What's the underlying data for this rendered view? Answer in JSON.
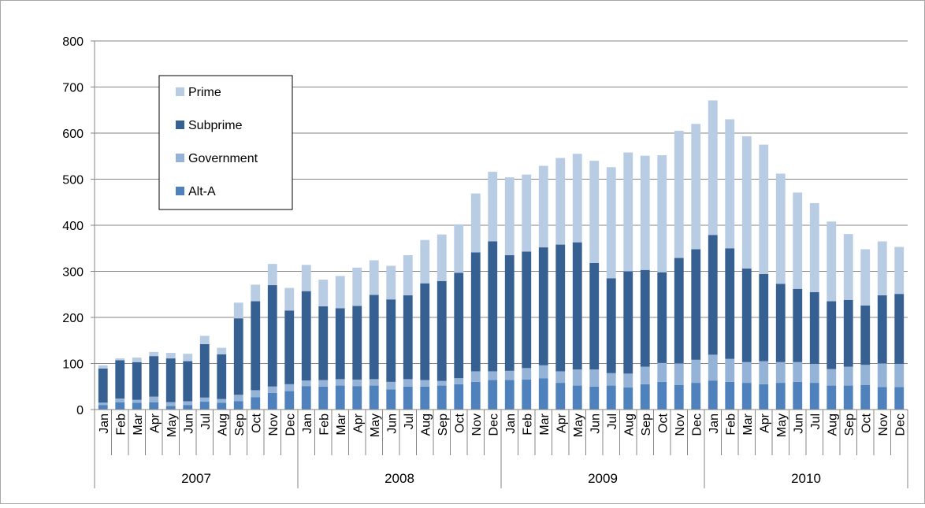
{
  "chart_data": {
    "type": "bar",
    "stacked": true,
    "title": "",
    "xlabel": "",
    "ylabel": "",
    "ylim": [
      0,
      800
    ],
    "yticks": [
      0,
      100,
      200,
      300,
      400,
      500,
      600,
      700,
      800
    ],
    "grid": true,
    "legend_position": "top-left",
    "categories": [
      "Jan",
      "Feb",
      "Mar",
      "Apr",
      "May",
      "Jun",
      "Jul",
      "Aug",
      "Sep",
      "Oct",
      "Nov",
      "Dec",
      "Jan",
      "Feb",
      "Mar",
      "Apr",
      "May",
      "Jun",
      "Jul",
      "Aug",
      "Sep",
      "Oct",
      "Nov",
      "Dec",
      "Jan",
      "Feb",
      "Mar",
      "Apr",
      "May",
      "Jun",
      "Jul",
      "Aug",
      "Sep",
      "Oct",
      "Nov",
      "Dec",
      "Jan",
      "Feb",
      "Mar",
      "Apr",
      "May",
      "Jun",
      "Jul",
      "Aug",
      "Sep",
      "Oct",
      "Nov",
      "Dec"
    ],
    "groups": [
      {
        "label": "2007",
        "count": 12
      },
      {
        "label": "2008",
        "count": 12
      },
      {
        "label": "2009",
        "count": 12
      },
      {
        "label": "2010",
        "count": 12
      }
    ],
    "series": [
      {
        "name": "Alt-A",
        "color": "#4f81bd",
        "values": [
          10,
          16,
          15,
          16,
          8,
          10,
          17,
          15,
          18,
          27,
          36,
          40,
          51,
          50,
          52,
          51,
          52,
          44,
          50,
          50,
          52,
          55,
          60,
          64,
          64,
          65,
          68,
          58,
          52,
          50,
          52,
          48,
          55,
          60,
          53,
          58,
          63,
          60,
          58,
          55,
          58,
          60,
          58,
          52,
          52,
          53,
          49,
          49
        ]
      },
      {
        "name": "Government",
        "color": "#95b3d7",
        "values": [
          5,
          8,
          6,
          12,
          8,
          8,
          9,
          8,
          14,
          15,
          14,
          15,
          12,
          14,
          14,
          14,
          14,
          16,
          16,
          14,
          10,
          13,
          23,
          19,
          20,
          25,
          28,
          25,
          35,
          37,
          27,
          30,
          38,
          41,
          47,
          50,
          56,
          50,
          45,
          50,
          45,
          43,
          41,
          36,
          41,
          44,
          51,
          50
        ]
      },
      {
        "name": "Subprime",
        "color": "#366092",
        "values": [
          74,
          83,
          82,
          88,
          95,
          87,
          116,
          97,
          166,
          193,
          220,
          160,
          194,
          160,
          154,
          160,
          183,
          179,
          182,
          210,
          217,
          229,
          258,
          282,
          251,
          253,
          256,
          275,
          276,
          231,
          206,
          222,
          210,
          197,
          229,
          240,
          260,
          240,
          203,
          189,
          170,
          159,
          156,
          147,
          145,
          129,
          148,
          152
        ]
      },
      {
        "name": "Prime",
        "color": "#b8cce4",
        "values": [
          7,
          4,
          10,
          9,
          12,
          16,
          18,
          14,
          34,
          36,
          46,
          49,
          57,
          58,
          70,
          83,
          75,
          73,
          87,
          94,
          101,
          105,
          128,
          151,
          169,
          167,
          177,
          188,
          192,
          222,
          241,
          258,
          248,
          254,
          276,
          272,
          292,
          280,
          287,
          281,
          239,
          209,
          193,
          173,
          143,
          122,
          117,
          102
        ]
      }
    ],
    "legend": [
      "Prime",
      "Subprime",
      "Government",
      "Alt-A"
    ]
  }
}
